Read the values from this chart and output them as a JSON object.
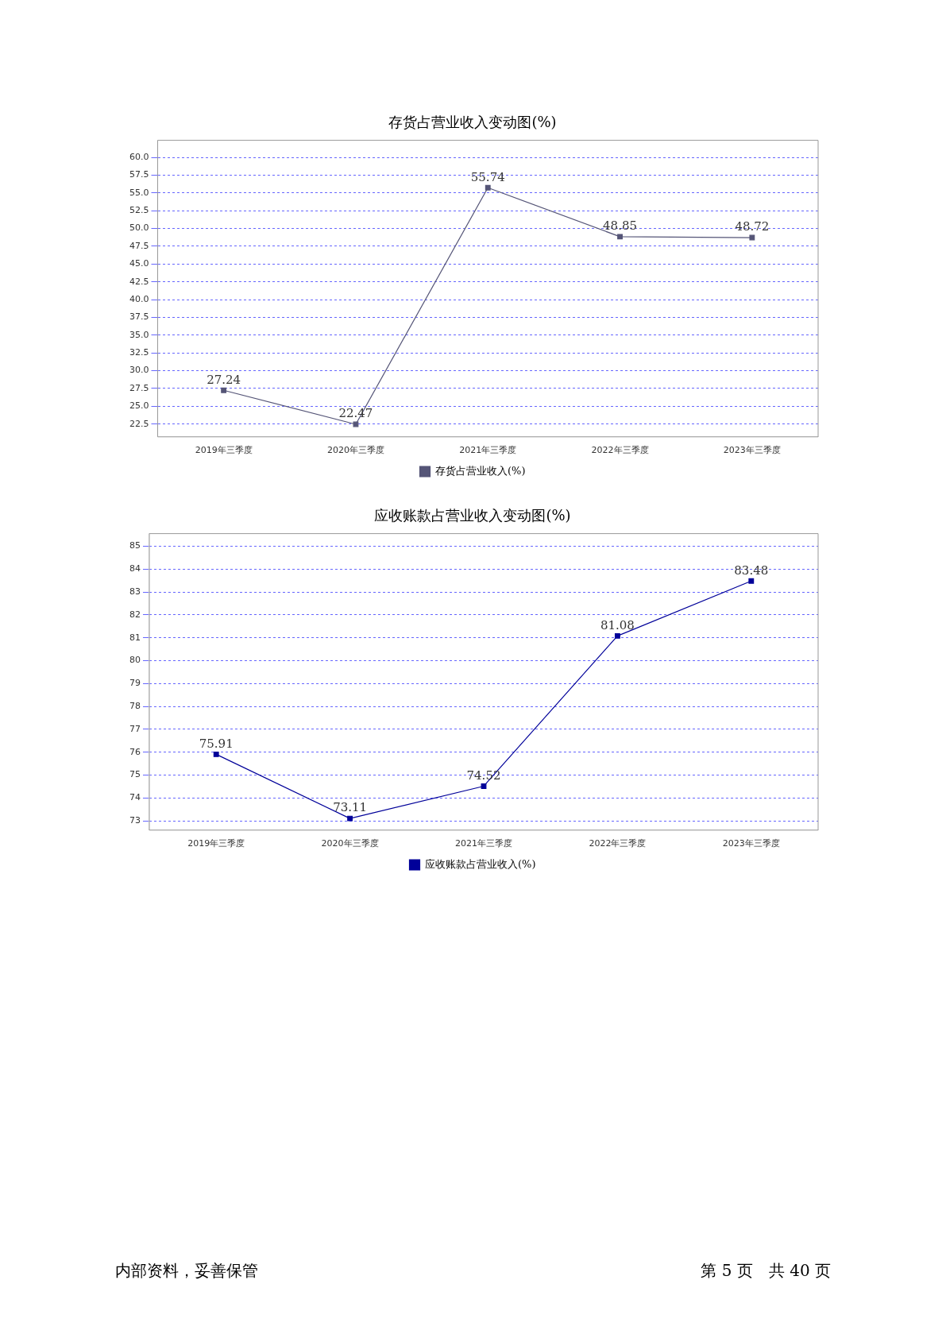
{
  "chart_data": [
    {
      "type": "line",
      "title": "存货占营业收入变动图(%)",
      "categories": [
        "2019年三季度",
        "2020年三季度",
        "2021年三季度",
        "2022年三季度",
        "2023年三季度"
      ],
      "series": [
        {
          "name": "存货占营业收入(%)",
          "color": "#555577",
          "values": [
            27.24,
            22.47,
            55.74,
            48.85,
            48.72
          ]
        }
      ],
      "ylim": [
        20.7,
        62.4
      ],
      "yticks": [
        {
          "value": 22.5,
          "label": "22.5"
        },
        {
          "value": 25,
          "label": "25.0"
        },
        {
          "value": 27.5,
          "label": "27.5"
        },
        {
          "value": 30,
          "label": "30.0"
        },
        {
          "value": 32.5,
          "label": "32.5"
        },
        {
          "value": 35,
          "label": "35.0"
        },
        {
          "value": 37.5,
          "label": "37.5"
        },
        {
          "value": 40,
          "label": "40.0"
        },
        {
          "value": 42.5,
          "label": "42.5"
        },
        {
          "value": 45,
          "label": "45.0"
        },
        {
          "value": 47.5,
          "label": "47.5"
        },
        {
          "value": 50,
          "label": "50.0"
        },
        {
          "value": 52.5,
          "label": "52.5"
        },
        {
          "value": 55,
          "label": "55.0"
        },
        {
          "value": 57.5,
          "label": "57.5"
        },
        {
          "value": 60,
          "label": "60.0"
        }
      ],
      "grid": "y",
      "legend": "bottom",
      "marker": "square",
      "line_style": "solid",
      "data_labels": true
    },
    {
      "type": "line",
      "title": "应收账款占营业收入变动图(%)",
      "categories": [
        "2019年三季度",
        "2020年三季度",
        "2021年三季度",
        "2022年三季度",
        "2023年三季度"
      ],
      "series": [
        {
          "name": "应收账款占营业收入(%)",
          "color": "#000099",
          "values": [
            75.91,
            73.11,
            74.52,
            81.08,
            83.48
          ]
        }
      ],
      "ylim": [
        72.6,
        85.55
      ],
      "yticks": [
        73,
        74,
        75,
        76,
        77,
        78,
        79,
        80,
        81,
        82,
        83,
        84,
        85
      ],
      "grid": "y",
      "legend": "bottom",
      "marker": "square",
      "line_style": "solid",
      "data_labels": true,
      "annotations": [
        "内部资料，妥善保管",
        "第 5 页　共 40 页"
      ]
    }
  ]
}
